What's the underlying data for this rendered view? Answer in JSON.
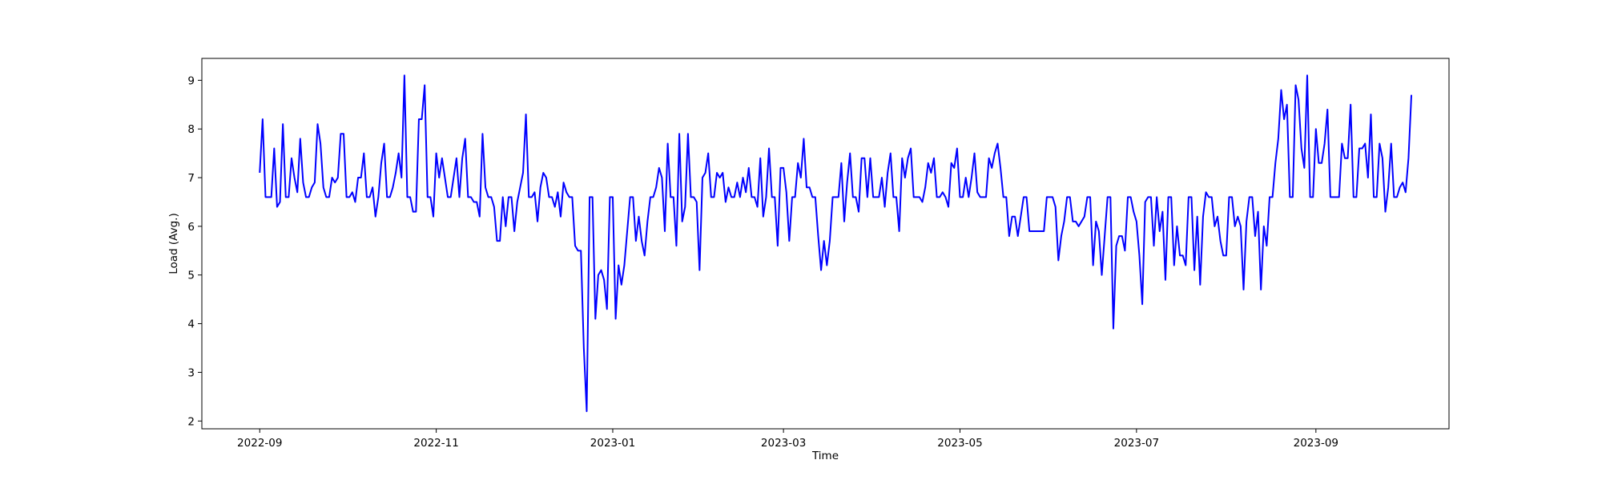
{
  "chart_data": {
    "type": "line",
    "title": "",
    "xlabel": "Time",
    "ylabel": "Load (Avg.)",
    "x_start": "2022-09-01",
    "x_step_days": 1,
    "xlim": [
      "2022-08-12",
      "2023-10-17"
    ],
    "ylim": [
      1.84,
      9.45
    ],
    "x_ticks": [
      "2022-09-01",
      "2022-11-01",
      "2023-01-01",
      "2023-03-01",
      "2023-05-01",
      "2023-07-01",
      "2023-09-01"
    ],
    "x_tick_labels": [
      "2022-09",
      "2022-11",
      "2023-01",
      "2023-03",
      "2023-05",
      "2023-07",
      "2023-09"
    ],
    "y_ticks": [
      2,
      3,
      4,
      5,
      6,
      7,
      8,
      9
    ],
    "y_tick_labels": [
      "2",
      "3",
      "4",
      "5",
      "6",
      "7",
      "8",
      "9"
    ],
    "grid": false,
    "line_color": "#0000ff",
    "series": [
      {
        "name": "",
        "values": [
          7.1,
          8.2,
          6.6,
          6.6,
          6.6,
          7.6,
          6.4,
          6.5,
          8.1,
          6.6,
          6.6,
          7.4,
          7.0,
          6.7,
          7.8,
          6.9,
          6.6,
          6.6,
          6.8,
          6.9,
          8.1,
          7.7,
          6.8,
          6.6,
          6.6,
          7.0,
          6.9,
          7.0,
          7.9,
          7.9,
          6.6,
          6.6,
          6.7,
          6.5,
          7.0,
          7.0,
          7.5,
          6.6,
          6.6,
          6.8,
          6.2,
          6.6,
          7.3,
          7.7,
          6.6,
          6.6,
          6.8,
          7.1,
          7.5,
          7.0,
          9.1,
          6.6,
          6.6,
          6.3,
          6.3,
          8.2,
          8.2,
          8.9,
          6.6,
          6.6,
          6.2,
          7.5,
          7.0,
          7.4,
          7.0,
          6.6,
          6.6,
          7.0,
          7.4,
          6.6,
          7.4,
          7.8,
          6.6,
          6.6,
          6.5,
          6.5,
          6.2,
          7.9,
          6.8,
          6.6,
          6.6,
          6.4,
          5.7,
          5.7,
          6.6,
          6.0,
          6.6,
          6.6,
          5.9,
          6.5,
          6.8,
          7.1,
          8.3,
          6.6,
          6.6,
          6.7,
          6.1,
          6.8,
          7.1,
          7.0,
          6.6,
          6.6,
          6.4,
          6.7,
          6.2,
          6.9,
          6.7,
          6.6,
          6.6,
          5.6,
          5.5,
          5.5,
          3.5,
          2.2,
          6.6,
          6.6,
          4.1,
          5.0,
          5.1,
          4.9,
          4.3,
          6.6,
          6.6,
          4.1,
          5.2,
          4.8,
          5.2,
          5.9,
          6.6,
          6.6,
          5.7,
          6.2,
          5.7,
          5.4,
          6.1,
          6.6,
          6.6,
          6.8,
          7.2,
          7.0,
          5.9,
          7.7,
          6.6,
          6.6,
          5.6,
          7.9,
          6.1,
          6.4,
          7.9,
          6.6,
          6.6,
          6.5,
          5.1,
          7.0,
          7.1,
          7.5,
          6.6,
          6.6,
          7.1,
          7.0,
          7.1,
          6.5,
          6.8,
          6.6,
          6.6,
          6.9,
          6.6,
          7.0,
          6.7,
          7.2,
          6.6,
          6.6,
          6.4,
          7.4,
          6.2,
          6.6,
          7.6,
          6.6,
          6.6,
          5.6,
          7.2,
          7.2,
          6.7,
          5.7,
          6.6,
          6.6,
          7.3,
          7.0,
          7.8,
          6.8,
          6.8,
          6.6,
          6.6,
          5.8,
          5.1,
          5.7,
          5.2,
          5.7,
          6.6,
          6.6,
          6.6,
          7.3,
          6.1,
          6.9,
          7.5,
          6.6,
          6.6,
          6.3,
          7.4,
          7.4,
          6.6,
          7.4,
          6.6,
          6.6,
          6.6,
          7.0,
          6.4,
          7.1,
          7.5,
          6.6,
          6.6,
          5.9,
          7.4,
          7.0,
          7.4,
          7.6,
          6.6,
          6.6,
          6.6,
          6.5,
          6.8,
          7.3,
          7.1,
          7.4,
          6.6,
          6.6,
          6.7,
          6.6,
          6.4,
          7.3,
          7.2,
          7.6,
          6.6,
          6.6,
          7.0,
          6.6,
          7.0,
          7.5,
          6.7,
          6.6,
          6.6,
          6.6,
          7.4,
          7.2,
          7.5,
          7.7,
          7.2,
          6.6,
          6.6,
          5.8,
          6.2,
          6.2,
          5.8,
          6.2,
          6.6,
          6.6,
          5.9,
          5.9,
          5.9,
          5.9,
          5.9,
          5.9,
          6.6,
          6.6,
          6.6,
          6.4,
          5.3,
          5.8,
          6.1,
          6.6,
          6.6,
          6.1,
          6.1,
          6.0,
          6.1,
          6.2,
          6.6,
          6.6,
          5.2,
          6.1,
          5.9,
          5.0,
          5.8,
          6.6,
          6.6,
          3.9,
          5.6,
          5.8,
          5.8,
          5.5,
          6.6,
          6.6,
          6.3,
          6.1,
          5.4,
          4.4,
          6.5,
          6.6,
          6.6,
          5.6,
          6.6,
          5.9,
          6.3,
          4.9,
          6.6,
          6.6,
          5.2,
          6.0,
          5.4,
          5.4,
          5.2,
          6.6,
          6.6,
          5.1,
          6.2,
          4.8,
          6.2,
          6.7,
          6.6,
          6.6,
          6.0,
          6.2,
          5.7,
          5.4,
          5.4,
          6.6,
          6.6,
          6.0,
          6.2,
          6.0,
          4.7,
          6.1,
          6.6,
          6.6,
          5.8,
          6.3,
          4.7,
          6.0,
          5.6,
          6.6,
          6.6,
          7.3,
          7.8,
          8.8,
          8.2,
          8.5,
          6.6,
          6.6,
          8.9,
          8.6,
          7.6,
          7.2,
          9.1,
          6.6,
          6.6,
          8.0,
          7.3,
          7.3,
          7.7,
          8.4,
          6.6,
          6.6,
          6.6,
          6.6,
          7.7,
          7.4,
          7.4,
          8.5,
          6.6,
          6.6,
          7.6,
          7.6,
          7.7,
          7.0,
          8.3,
          6.6,
          6.6,
          7.7,
          7.4,
          6.3,
          6.8,
          7.7,
          6.6,
          6.6,
          6.8,
          6.9,
          6.7,
          7.4,
          8.7
        ]
      }
    ]
  }
}
